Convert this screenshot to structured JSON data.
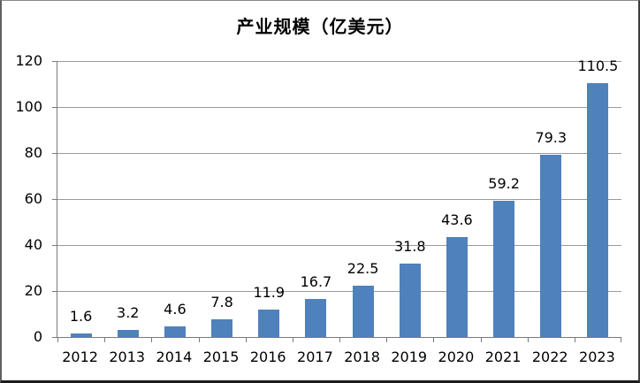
{
  "chart_data": {
    "type": "bar",
    "title": "产业规模（亿美元）",
    "categories": [
      "2012",
      "2013",
      "2014",
      "2015",
      "2016",
      "2017",
      "2018",
      "2019",
      "2020",
      "2021",
      "2022",
      "2023"
    ],
    "values": [
      1.6,
      3.2,
      4.6,
      7.8,
      11.9,
      16.7,
      22.5,
      31.8,
      43.6,
      59.2,
      79.3,
      110.5
    ],
    "data_labels": [
      "1.6",
      "3.2",
      "4.6",
      "7.8",
      "11.9",
      "16.7",
      "22.5",
      "31.8",
      "43.6",
      "59.2",
      "79.3",
      "110.5"
    ],
    "xlabel": "",
    "ylabel": "",
    "ylim": [
      0,
      120
    ],
    "yticks": [
      0,
      20,
      40,
      60,
      80,
      100,
      120
    ],
    "grid": "horizontal",
    "legend": "none",
    "colors": {
      "bar": "#4F81BD",
      "gridline": "#9b9b9b",
      "axis": "#7a7a7a",
      "text": "#000000",
      "background": "#ffffff"
    }
  }
}
